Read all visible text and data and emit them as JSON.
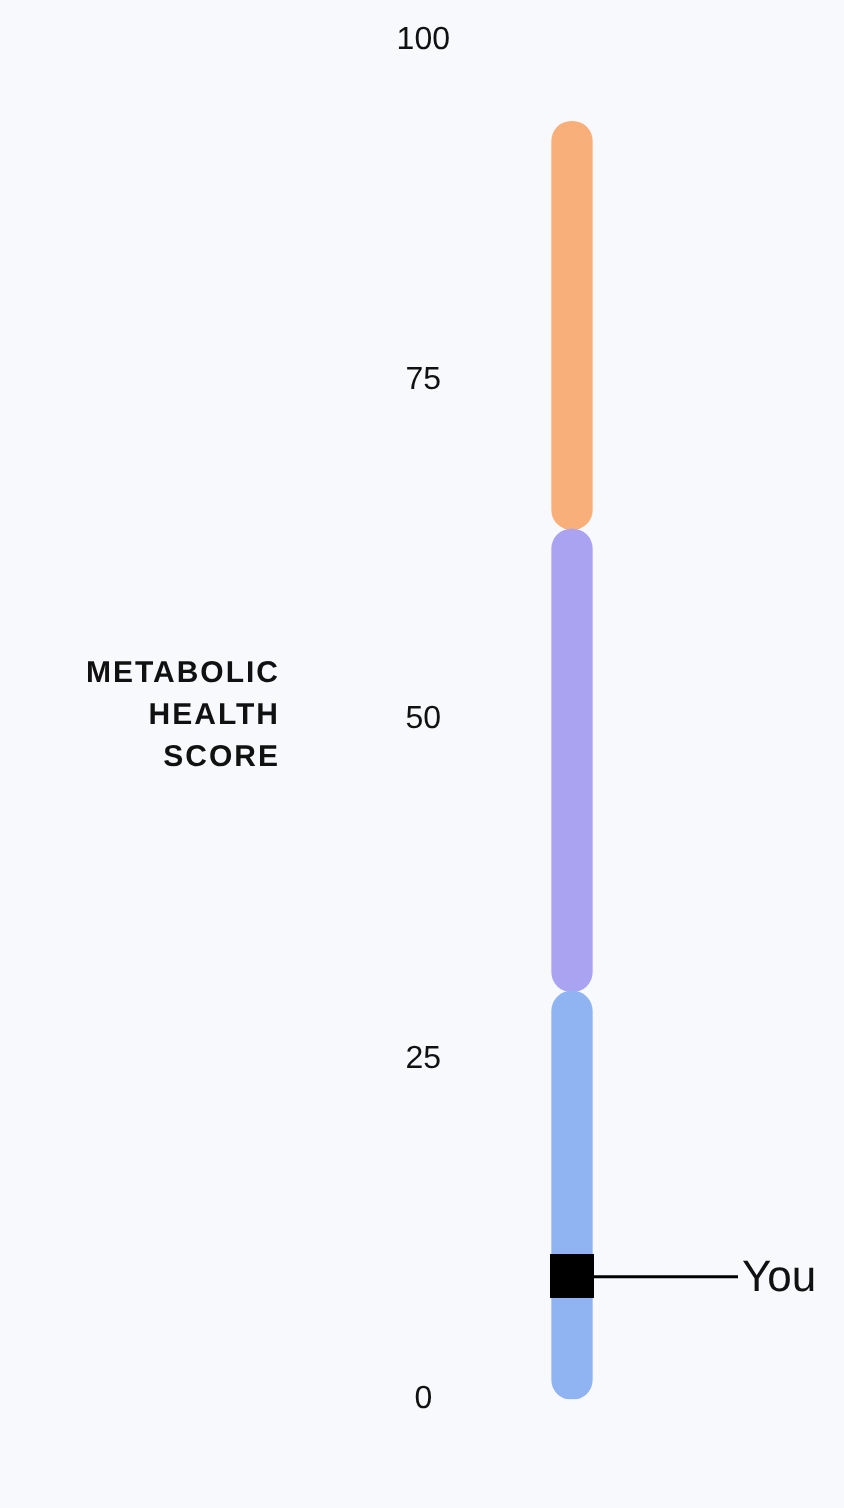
{
  "chart_data": {
    "type": "bar",
    "ylabel": "METABOLIC HEALTH SCORE",
    "categories": [
      null
    ],
    "ylim": [
      0,
      100
    ],
    "yticks": [
      0,
      25,
      50,
      75,
      100
    ],
    "grid": false,
    "legend": false,
    "series": [
      {
        "color": "#90b4f2",
        "base": [
          0
        ],
        "values": [
          30
        ]
      },
      {
        "color": "#a9a3f1",
        "base": [
          30
        ],
        "values": [
          34
        ]
      },
      {
        "color": "#f9af7a",
        "base": [
          64
        ],
        "values": [
          30
        ]
      }
    ],
    "ref_lines": [
      {
        "axis": "y",
        "value": 9,
        "label": "You",
        "color": "#000000"
      }
    ]
  }
}
